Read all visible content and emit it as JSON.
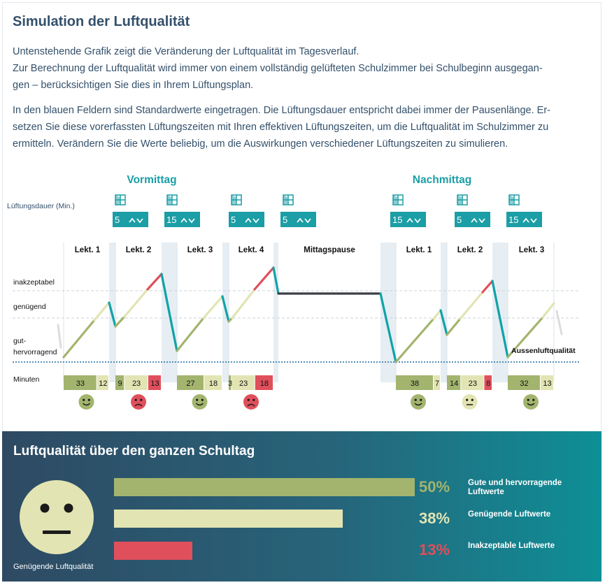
{
  "header": {
    "title": "Simulation der Luftqualität",
    "intro_line1": "Untenstehende Grafik zeigt die Veränderung der Luftqualität im Tagesverlauf.",
    "intro_line2": "Zur Berechnung der Luftqualität wird immer von einem vollständig gelüfteten Schulzimmer bei Schulbeginn ausgegan-",
    "intro_line3": "gen – berücksichtigen Sie dies in Ihrem Lüftungsplan.",
    "intro2_line1": "In den blauen Feldern sind Standardwerte eingetragen. Die Lüftungsdauer entspricht dabei immer der Pausenlänge. Er-",
    "intro2_line2": "setzen Sie diese vorerfassten Lüftungszeiten mit Ihren effektiven Lüftungszeiten, um die Luftqualität im Schulzimmer zu",
    "intro2_line3": "ermitteln. Verändern Sie die Werte beliebig, um die Auswirkungen verschiedener Lüftungszeiten zu simulieren."
  },
  "simulation": {
    "morning_label": "Vormittag",
    "afternoon_label": "Nachmittag",
    "ventilation_label": "Lüftungsdauer (Min.)",
    "ventilation_values": [
      "5",
      "15",
      "5",
      "5",
      "15",
      "5",
      "15"
    ],
    "lessons": [
      "Lekt. 1",
      "Lekt. 2",
      "Lekt. 3",
      "Lekt. 4",
      "Mittagspause",
      "Lekt. 1",
      "Lekt. 2",
      "Lekt. 3"
    ],
    "levels": {
      "unacceptable": "inakzeptabel",
      "sufficient": "genügend",
      "good1": "gut-",
      "good2": "hervorragend"
    },
    "outdoor_label": "Aussenluftqualität",
    "minutes_label": "Minuten",
    "lesson_minutes": [
      [
        {
          "v": "33",
          "c": "good"
        },
        {
          "v": "12",
          "c": "ok"
        }
      ],
      [
        {
          "v": "9",
          "c": "good"
        },
        {
          "v": "23",
          "c": "ok"
        },
        {
          "v": "13",
          "c": "bad"
        }
      ],
      [
        {
          "v": "27",
          "c": "good"
        },
        {
          "v": "18",
          "c": "ok"
        }
      ],
      [
        {
          "v": "3",
          "c": "good"
        },
        {
          "v": "23",
          "c": "ok"
        },
        {
          "v": "18",
          "c": "bad"
        }
      ],
      [
        {
          "v": "38",
          "c": "good"
        },
        {
          "v": "7",
          "c": "ok"
        }
      ],
      [
        {
          "v": "14",
          "c": "good"
        },
        {
          "v": "23",
          "c": "ok"
        },
        {
          "v": "8",
          "c": "bad"
        }
      ],
      [
        {
          "v": "32",
          "c": "good"
        },
        {
          "v": "13",
          "c": "ok"
        }
      ]
    ],
    "lesson_moods": [
      "happy",
      "sad",
      "happy",
      "sad",
      "happy",
      "neutral",
      "happy"
    ]
  },
  "summary": {
    "title": "Luftqualität über den ganzen Schultag",
    "face_label": "Genügende Luftqualität",
    "face_mood": "neutral",
    "rows": [
      {
        "percent": "50%",
        "value": 50,
        "label": "Gute und hervorragende Luftwerte",
        "color": "#a3b46e"
      },
      {
        "percent": "38%",
        "value": 38,
        "label": "Genügende Luftwerte",
        "color": "#e2e4b3"
      },
      {
        "percent": "13%",
        "value": 13,
        "label": "Inakzeptable Luftwerte",
        "color": "#e04f5c"
      }
    ]
  },
  "colors": {
    "accent": "#1b9ea5",
    "heading": "#34506b",
    "good": "#a3b46e",
    "ok": "#e2e4b3",
    "bad": "#e04f5c",
    "line_teal": "#0fa3a8",
    "outdoor_dotted": "#1c6ea5"
  }
}
